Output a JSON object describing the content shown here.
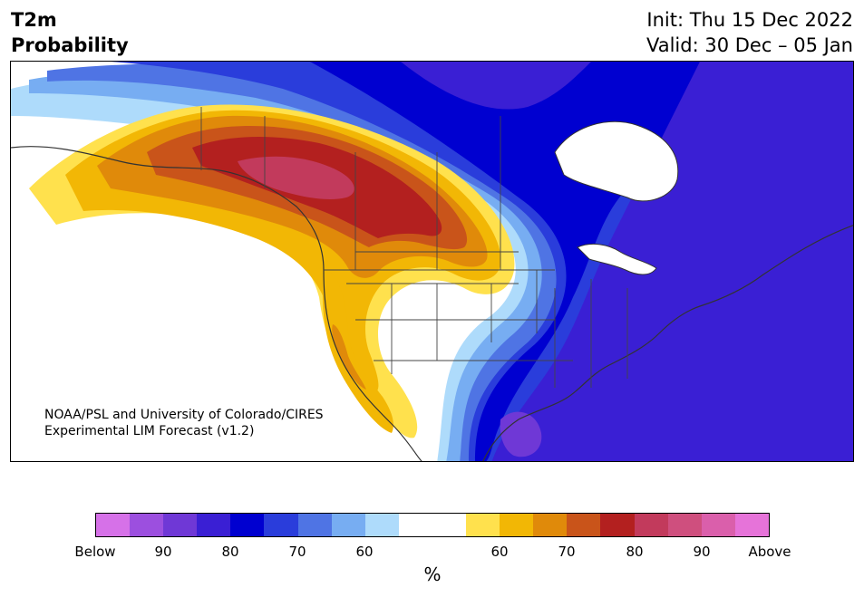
{
  "header": {
    "variable": "T2m",
    "product": "Probability",
    "init": "Init: Thu 15 Dec 2022",
    "valid": "Valid: 30 Dec – 05 Jan"
  },
  "credit": {
    "line1": "NOAA/PSL and University of Colorado/CIRES",
    "line2": "Experimental LIM Forecast (v1.2)"
  },
  "colorbar": {
    "below_colors": [
      "#d671e8",
      "#9c4fdf",
      "#6f38d6",
      "#3a1fd4",
      "#0000d0",
      "#2a3ddb",
      "#4f74e4",
      "#77adf2",
      "#aedbfb"
    ],
    "neutral_color": "#ffffff",
    "above_colors": [
      "#ffe14d",
      "#f2b705",
      "#e08a0a",
      "#c9541a",
      "#b3201f",
      "#c23a5c",
      "#cf4f7e",
      "#da5fab",
      "#e673d9"
    ],
    "tick_labels": [
      "Below",
      "90",
      "80",
      "70",
      "60",
      "60",
      "70",
      "80",
      "90",
      "Above"
    ],
    "unit_label": "%"
  },
  "map": {
    "region": "North America",
    "legend_color_meaning": "probability of below/above normal 2m temperature",
    "ocean_color": "#ffffff",
    "coastline_color": "#333333"
  }
}
